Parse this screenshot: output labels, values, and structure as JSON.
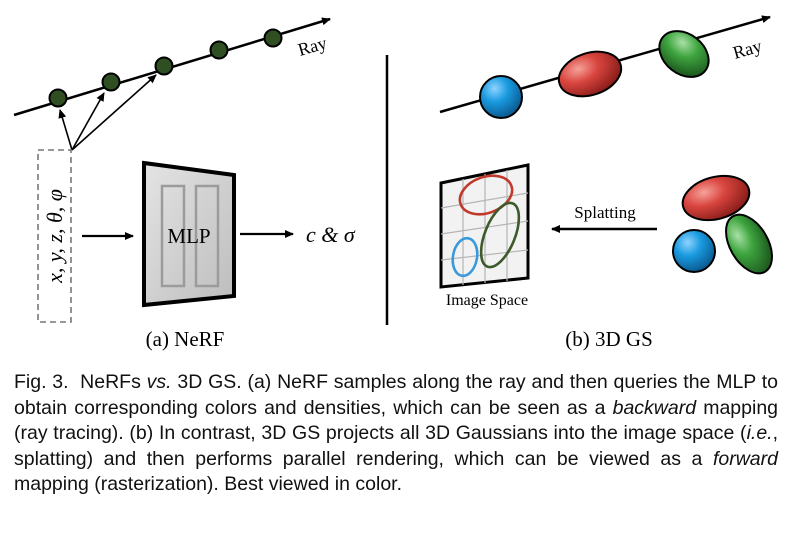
{
  "nerf": {
    "ray_label": "Ray",
    "input_label": "x, y, z, θ, φ",
    "mlp_label": "MLP",
    "output_label": "c & σ",
    "panel_caption": "(a) NeRF"
  },
  "gs": {
    "ray_label": "Ray",
    "splatting_label": "Splatting",
    "image_space_label": "Image Space",
    "panel_caption": "(b) 3D GS"
  },
  "colors": {
    "sample_point": "#2f4f23",
    "gaussian_blue": "#1a8fd6",
    "gaussian_red": "#d9453f",
    "gaussian_green": "#3a9a3d",
    "ellipse_red": "#c0392b",
    "ellipse_green": "#3d5a2a",
    "ellipse_blue": "#3a9ad9"
  },
  "caption": {
    "fig_label": "Fig. 3.",
    "part1": "NeRFs",
    "vs": "vs.",
    "part2": "3D GS. (a) NeRF samples along the ray and then queries the MLP to obtain corresponding colors and densities, which can be seen as a",
    "backward": "backward",
    "part3": "mapping (ray tracing). (b) In contrast, 3D GS projects all 3D Gaussians into the image space (",
    "ie": "i.e.",
    "part4": ", splatting) and then performs parallel rendering, which can be viewed as a",
    "forward": "forward",
    "part5": "mapping (rasterization). Best viewed in color."
  }
}
